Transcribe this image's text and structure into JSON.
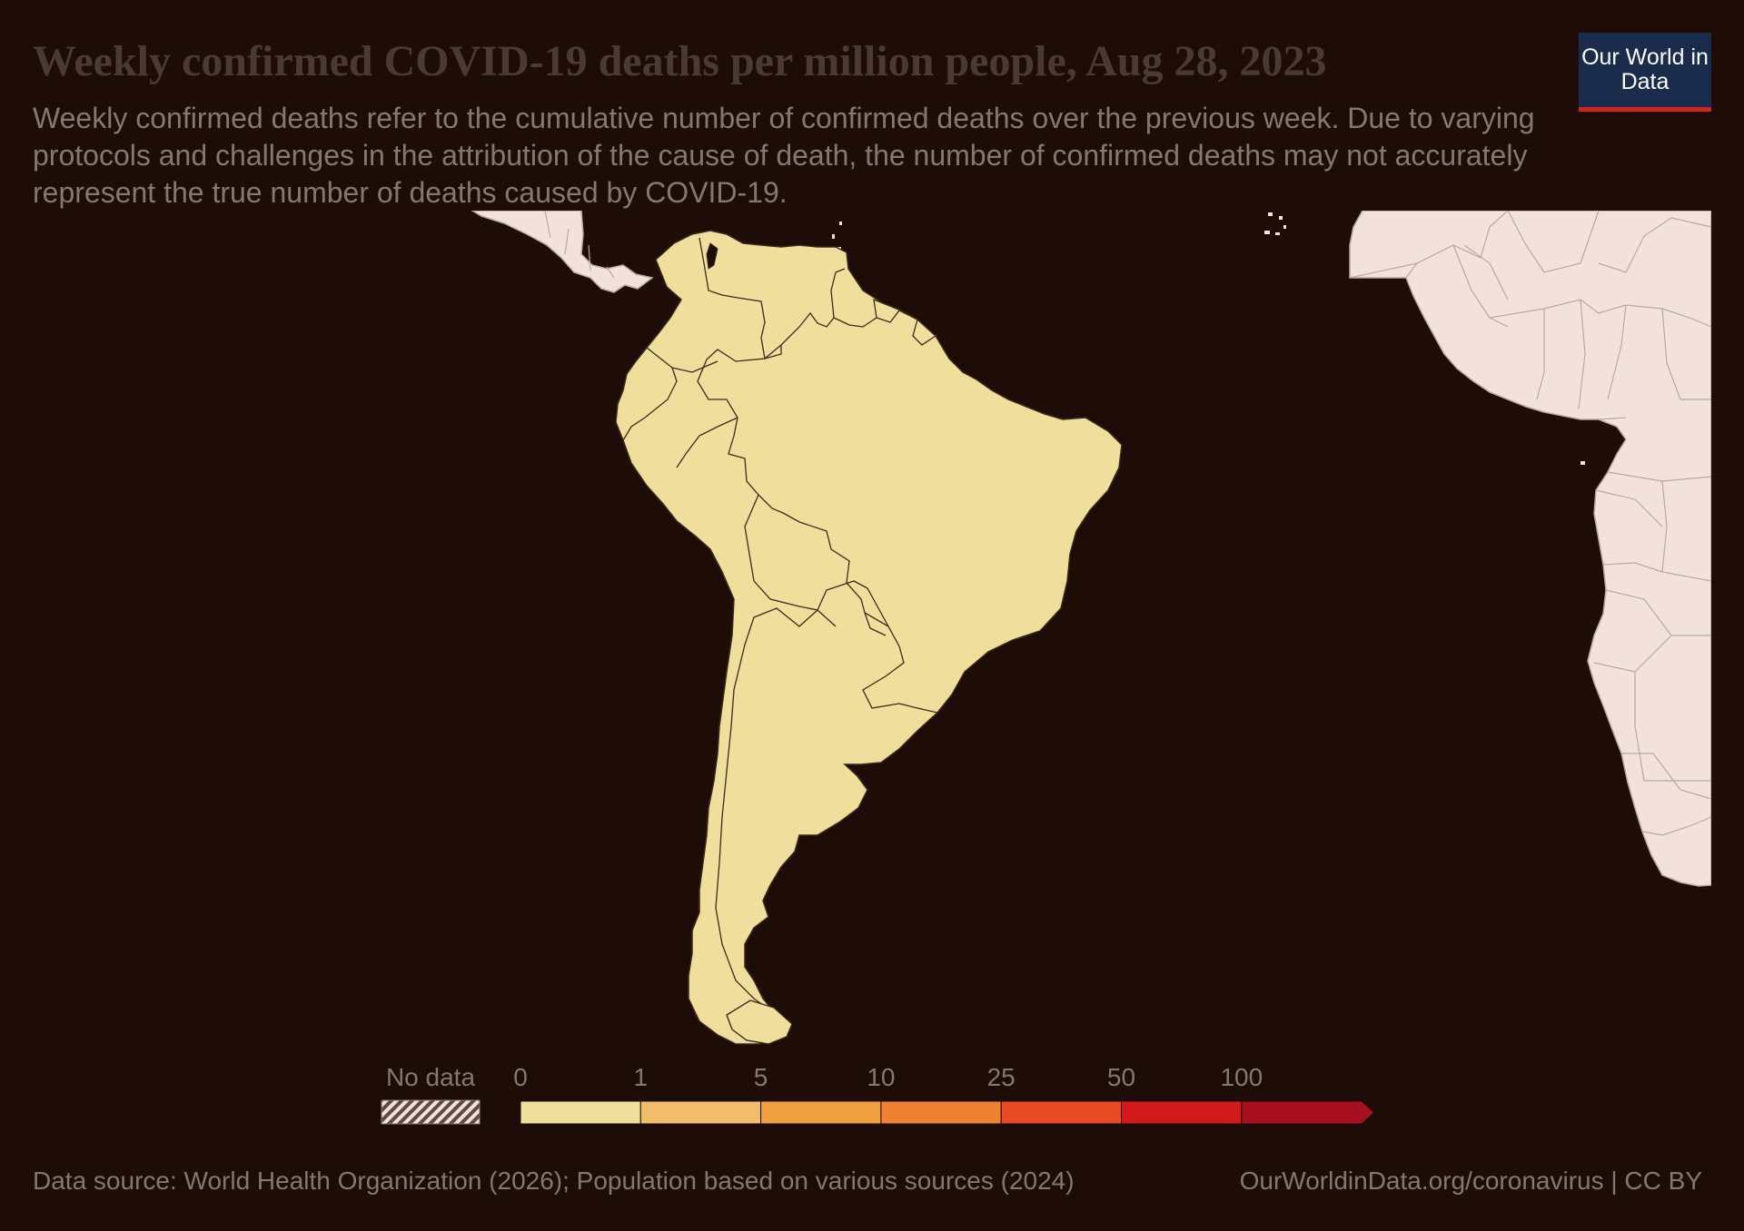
{
  "header": {
    "title": "Weekly confirmed COVID-19 deaths per million people, Aug 28, 2023",
    "subtitle": "Weekly confirmed deaths refer to the cumulative number of confirmed deaths over the previous week. Due to varying protocols and challenges in the attribution of the cause of death, the number of confirmed deaths may not accurately represent the true number of deaths caused by COVID-19.",
    "logo": "Our World in Data"
  },
  "colors": {
    "background": "#1d0c07",
    "no_data_land": "#f3e2dc",
    "south_america": "#f0df9c",
    "border_dark": "#3a2a1c",
    "border_light": "#b9a8a2",
    "logo_bg": "#1a2b4c",
    "logo_accent": "#ce261e"
  },
  "legend": {
    "no_data_label": "No data",
    "ticks": [
      "0",
      "1",
      "5",
      "10",
      "25",
      "50",
      "100"
    ],
    "bins": [
      {
        "from": 0,
        "to": 1,
        "color": "#f0df9c"
      },
      {
        "from": 1,
        "to": 5,
        "color": "#f2bd6a"
      },
      {
        "from": 5,
        "to": 10,
        "color": "#f0a03f"
      },
      {
        "from": 10,
        "to": 25,
        "color": "#ee8232"
      },
      {
        "from": 25,
        "to": 50,
        "color": "#e94a26"
      },
      {
        "from": 50,
        "to": 100,
        "color": "#d2191c"
      },
      {
        "from": 100,
        "to": null,
        "color": "#a80f21"
      }
    ]
  },
  "footer": {
    "source": "Data source: World Health Organization (2026); Population based on various sources (2024)",
    "url": "OurWorldinData.org/coronavirus | CC BY"
  }
}
